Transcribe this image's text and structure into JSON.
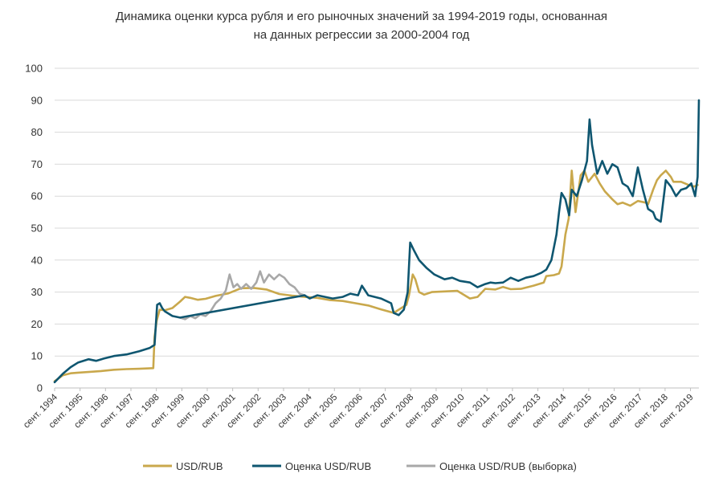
{
  "chart_data": {
    "type": "line",
    "title_lines": [
      "Динамика оценки курса рубля и его рыночных значений за 1994-2019 годы, основанная",
      "на данных регрессии за 2000-2004 год"
    ],
    "xlabel": "",
    "ylabel": "",
    "ylim": [
      0,
      100
    ],
    "yticks": [
      0,
      10,
      20,
      30,
      40,
      50,
      60,
      70,
      80,
      90,
      100
    ],
    "xlim": [
      1994.67,
      2020.0
    ],
    "xtick_labels": [
      "сент. 1994",
      "сент. 1995",
      "сент. 1996",
      "сент. 1997",
      "сент. 1998",
      "сент. 1999",
      "сент. 2000",
      "сент. 2001",
      "сент. 2002",
      "сент. 2003",
      "сент. 2004",
      "сент. 2005",
      "сент. 2006",
      "сент. 2007",
      "сент. 2008",
      "сент. 2009",
      "сент. 2010",
      "сент. 2011",
      "сент. 2012",
      "сент. 2013",
      "сент. 2014",
      "сент. 2015",
      "сент. 2016",
      "сент. 2017",
      "сент. 2018",
      "сент. 2019"
    ],
    "xtick_values": [
      1994.67,
      1995.67,
      1996.67,
      1997.67,
      1998.67,
      1999.67,
      2000.67,
      2001.67,
      2002.67,
      2003.67,
      2004.67,
      2005.67,
      2006.67,
      2007.67,
      2008.67,
      2009.67,
      2010.67,
      2011.67,
      2012.67,
      2013.67,
      2014.67,
      2015.67,
      2016.67,
      2017.67,
      2018.67,
      2019.67
    ],
    "grid": true,
    "legend_position": "bottom",
    "series": [
      {
        "name": "USD/RUB",
        "color": "#c9a84c",
        "x": [
          1994.67,
          1995.0,
          1995.3,
          1995.6,
          1996.0,
          1996.5,
          1997.0,
          1997.5,
          1998.0,
          1998.55,
          1998.6,
          1998.68,
          1998.8,
          1999.0,
          1999.3,
          1999.6,
          1999.8,
          2000.0,
          2000.3,
          2000.6,
          2001.0,
          2001.5,
          2002.0,
          2002.5,
          2003.0,
          2003.5,
          2004.0,
          2004.5,
          2005.0,
          2005.5,
          2006.0,
          2006.5,
          2007.0,
          2007.5,
          2008.0,
          2008.5,
          2008.6,
          2008.75,
          2008.85,
          2009.0,
          2009.2,
          2009.5,
          2010.0,
          2010.5,
          2011.0,
          2011.3,
          2011.6,
          2012.0,
          2012.3,
          2012.6,
          2013.0,
          2013.5,
          2013.9,
          2014.0,
          2014.3,
          2014.5,
          2014.6,
          2014.75,
          2014.88,
          2015.0,
          2015.15,
          2015.35,
          2015.5,
          2015.65,
          2015.9,
          2016.1,
          2016.3,
          2016.6,
          2016.8,
          2017.0,
          2017.3,
          2017.6,
          2017.9,
          2018.0,
          2018.2,
          2018.35,
          2018.5,
          2018.7,
          2018.9,
          2019.0,
          2019.3,
          2019.6,
          2019.8,
          2019.95
        ],
        "y": [
          2.1,
          4.0,
          4.6,
          4.8,
          5.0,
          5.3,
          5.7,
          5.9,
          6.0,
          6.2,
          16.0,
          21.0,
          24.5,
          24.3,
          25.0,
          27.0,
          28.5,
          28.2,
          27.6,
          27.9,
          28.8,
          29.6,
          31.2,
          31.3,
          30.8,
          29.4,
          28.9,
          28.5,
          28.2,
          27.5,
          27.2,
          26.5,
          25.8,
          24.6,
          23.5,
          26.0,
          29.0,
          35.5,
          34.0,
          30.0,
          29.2,
          30.0,
          30.2,
          30.4,
          28.0,
          28.5,
          31.0,
          30.8,
          31.6,
          30.9,
          31.0,
          32.0,
          33.0,
          35.0,
          35.3,
          35.8,
          38.0,
          48.0,
          53.0,
          68.0,
          55.0,
          66.5,
          68.0,
          64.5,
          67.0,
          64.0,
          61.5,
          59.0,
          57.5,
          58.0,
          57.0,
          58.5,
          58.0,
          57.5,
          62.0,
          65.0,
          66.5,
          68.0,
          66.0,
          64.5,
          64.5,
          63.5,
          63.0,
          63.5
        ]
      },
      {
        "name": "Оценка USD/RUB",
        "color": "#0f5670",
        "x": [
          1994.67,
          1995.0,
          1995.3,
          1995.6,
          1996.0,
          1996.3,
          1996.6,
          1997.0,
          1997.5,
          1998.0,
          1998.4,
          1998.6,
          1998.7,
          1998.8,
          1998.9,
          1999.0,
          1999.3,
          1999.6,
          2004.5,
          2004.7,
          2005.0,
          2005.3,
          2005.6,
          2006.0,
          2006.3,
          2006.6,
          2006.75,
          2007.0,
          2007.5,
          2007.9,
          2008.0,
          2008.2,
          2008.4,
          2008.55,
          2008.65,
          2008.8,
          2009.0,
          2009.3,
          2009.6,
          2010.0,
          2010.3,
          2010.6,
          2011.0,
          2011.3,
          2011.6,
          2011.8,
          2012.0,
          2012.3,
          2012.6,
          2012.9,
          2013.2,
          2013.5,
          2013.8,
          2014.0,
          2014.2,
          2014.4,
          2014.5,
          2014.6,
          2014.75,
          2014.9,
          2015.0,
          2015.2,
          2015.4,
          2015.5,
          2015.6,
          2015.7,
          2015.8,
          2016.0,
          2016.2,
          2016.4,
          2016.6,
          2016.8,
          2017.0,
          2017.2,
          2017.4,
          2017.6,
          2017.8,
          2018.0,
          2018.2,
          2018.3,
          2018.5,
          2018.7,
          2018.9,
          2019.1,
          2019.3,
          2019.5,
          2019.7,
          2019.85,
          2019.95,
          2020.0
        ],
        "y": [
          1.8,
          4.5,
          6.5,
          8.0,
          9.0,
          8.5,
          9.2,
          10.0,
          10.5,
          11.5,
          12.5,
          13.5,
          26.0,
          26.5,
          25.0,
          24.0,
          22.5,
          22.0,
          29.0,
          28.0,
          29.0,
          28.5,
          28.0,
          28.5,
          29.5,
          29.0,
          32.0,
          29.0,
          28.0,
          26.5,
          23.5,
          22.8,
          24.5,
          30.0,
          45.5,
          43.0,
          40.0,
          37.5,
          35.5,
          34.0,
          34.5,
          33.5,
          33.0,
          31.5,
          32.5,
          33.0,
          32.8,
          33.0,
          34.5,
          33.5,
          34.5,
          35.0,
          36.0,
          37.0,
          40.0,
          48.0,
          55.0,
          61.0,
          59.0,
          54.0,
          62.0,
          60.0,
          65.0,
          68.0,
          71.0,
          84.0,
          76.0,
          67.0,
          71.0,
          67.0,
          70.0,
          69.0,
          64.0,
          63.0,
          60.0,
          69.0,
          62.0,
          56.0,
          55.0,
          53.0,
          52.0,
          65.0,
          63.0,
          60.0,
          62.0,
          62.5,
          64.0,
          60.0,
          66.0,
          90.0
        ]
      },
      {
        "name": "Оценка USD/RUB (выборка)",
        "color": "#a8a8a8",
        "x": [
          1999.6,
          1999.8,
          2000.0,
          2000.2,
          2000.4,
          2000.6,
          2000.8,
          2001.0,
          2001.2,
          2001.4,
          2001.55,
          2001.7,
          2001.85,
          2002.0,
          2002.2,
          2002.4,
          2002.6,
          2002.75,
          2002.9,
          2003.1,
          2003.3,
          2003.5,
          2003.7,
          2003.9,
          2004.1,
          2004.3,
          2004.5
        ],
        "y": [
          22.0,
          21.5,
          22.5,
          21.8,
          23.0,
          22.5,
          24.0,
          26.5,
          28.0,
          30.5,
          35.5,
          31.5,
          32.5,
          31.0,
          32.5,
          31.0,
          33.0,
          36.5,
          33.0,
          35.5,
          34.0,
          35.5,
          34.5,
          32.5,
          31.5,
          29.5,
          29.0
        ]
      }
    ]
  },
  "legend": {
    "items": [
      {
        "label": "USD/RUB",
        "color": "#c9a84c"
      },
      {
        "label": "Оценка USD/RUB",
        "color": "#0f5670"
      },
      {
        "label": "Оценка USD/RUB (выборка)",
        "color": "#a8a8a8"
      }
    ]
  }
}
